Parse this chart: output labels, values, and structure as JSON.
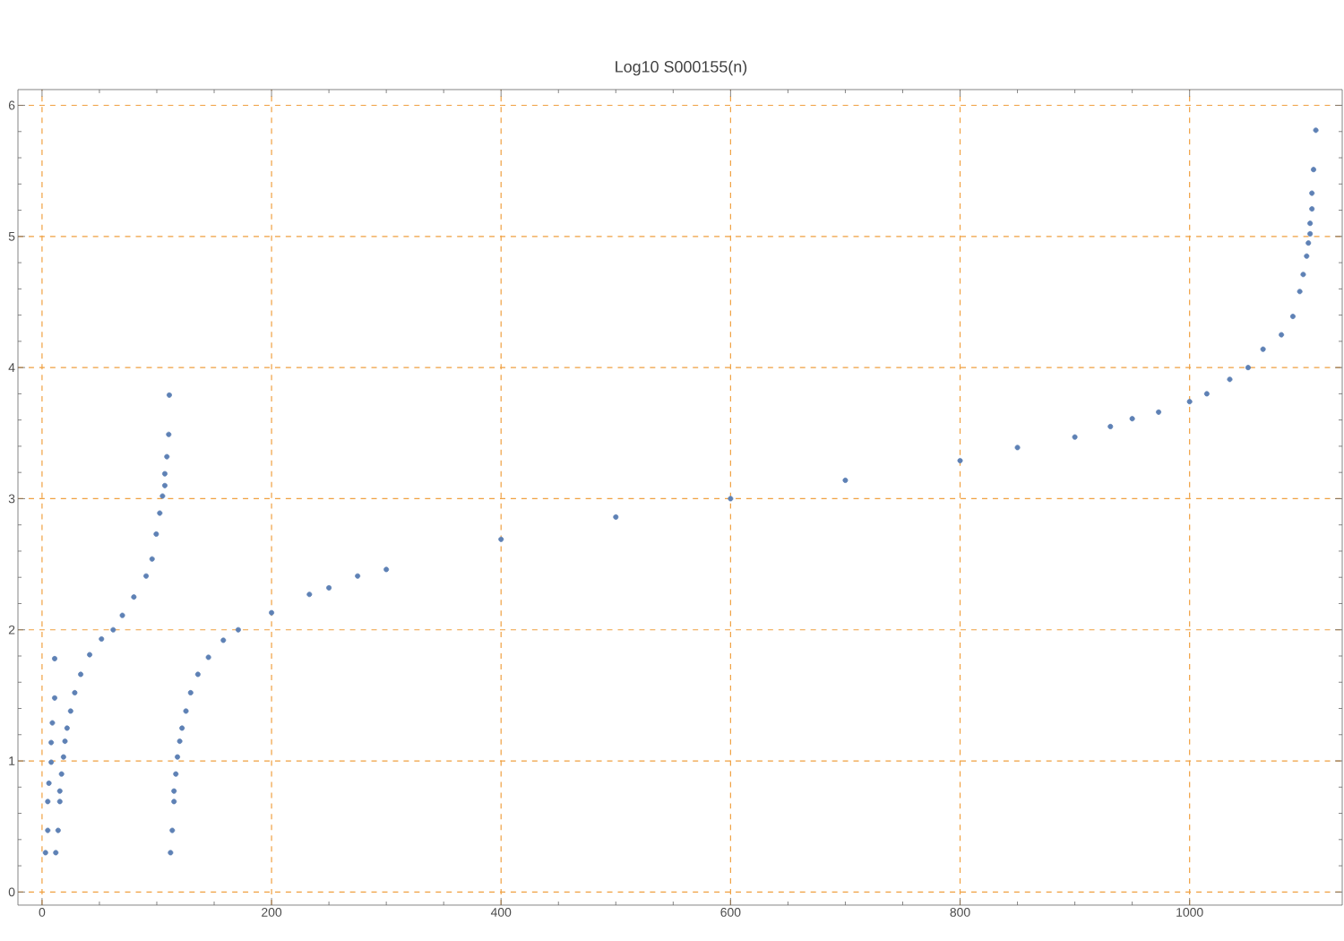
{
  "chart_data": {
    "type": "scatter",
    "title": "Log10 S000155(n)",
    "x": [
      3,
      5,
      5,
      6,
      8,
      8,
      9,
      11,
      11,
      12,
      14,
      15.5,
      15.5,
      17,
      18.7,
      20,
      21.8,
      24.9,
      28.5,
      33.7,
      41.5,
      51.8,
      62,
      70,
      80,
      90.7,
      95.9,
      99.5,
      102.6,
      105,
      107,
      107,
      108.8,
      110.4,
      110.9,
      112,
      113.5,
      115,
      115,
      116.6,
      118,
      120,
      122,
      125.4,
      129.5,
      135.8,
      145,
      158,
      171,
      200,
      233,
      250,
      275,
      300,
      400,
      500,
      600,
      700,
      800,
      850,
      900,
      931,
      950,
      973,
      1000,
      1015,
      1035,
      1051,
      1064,
      1080,
      1090,
      1096,
      1099,
      1102,
      1103.5,
      1105,
      1105,
      1106.6,
      1106.6,
      1108,
      1110
    ],
    "values": [
      0.3,
      0.47,
      0.69,
      0.83,
      0.99,
      1.14,
      1.29,
      1.48,
      1.78,
      0.3,
      0.47,
      0.69,
      0.77,
      0.9,
      1.03,
      1.15,
      1.25,
      1.38,
      1.52,
      1.66,
      1.81,
      1.93,
      2.0,
      2.11,
      2.25,
      2.41,
      2.54,
      2.73,
      2.89,
      3.02,
      3.1,
      3.19,
      3.32,
      3.49,
      3.79,
      0.3,
      0.47,
      0.69,
      0.77,
      0.9,
      1.03,
      1.15,
      1.25,
      1.38,
      1.52,
      1.66,
      1.79,
      1.92,
      2.0,
      2.13,
      2.27,
      2.32,
      2.41,
      2.46,
      2.69,
      2.86,
      3.0,
      3.14,
      3.29,
      3.39,
      3.47,
      3.55,
      3.61,
      3.66,
      3.74,
      3.8,
      3.91,
      4.0,
      4.14,
      4.25,
      4.39,
      4.58,
      4.71,
      4.85,
      4.95,
      5.02,
      5.1,
      5.21,
      5.33,
      5.51,
      5.81
    ],
    "color": "#5e81b5",
    "marker": "circle",
    "xlim": [
      -21,
      1133
    ],
    "ylim": [
      -0.1,
      6.12
    ],
    "xticks": [
      0,
      200,
      400,
      600,
      800,
      1000
    ],
    "yticks": [
      0,
      1,
      2,
      3,
      4,
      5,
      6
    ],
    "grid": true
  }
}
